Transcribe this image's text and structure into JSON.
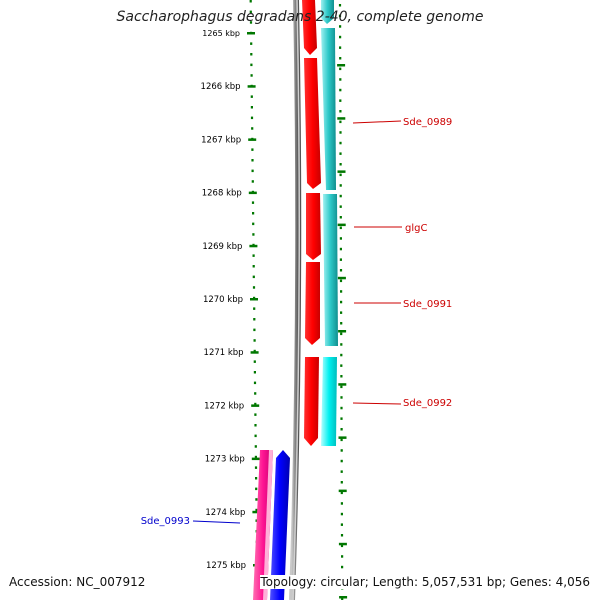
{
  "title": "Saccharophagus degradans 2-40, complete genome",
  "accession_text": "Accession: NC_007912",
  "summary_text": "Topology: circular; Length: 5,057,531 bp; Genes: 4,056",
  "ruler": {
    "unit": "kbp",
    "ticks": [
      "1265 kbp",
      "1266 kbp",
      "1267 kbp",
      "1268 kbp",
      "1269 kbp",
      "1270 kbp",
      "1271 kbp",
      "1272 kbp",
      "1273 kbp",
      "1274 kbp",
      "1275 kbp"
    ]
  },
  "genes": [
    {
      "label": "Sde_0989",
      "color": "#cc0000"
    },
    {
      "label": "glgC",
      "color": "#cc0000"
    },
    {
      "label": "Sde_0991",
      "color": "#cc0000"
    },
    {
      "label": "Sde_0992",
      "color": "#cc0000"
    },
    {
      "label": "Sde_0993",
      "color": "#0000cc"
    }
  ],
  "colors": {
    "forward_cds": "#ff0000",
    "forward_feature": "#00cccc",
    "reverse_cds": "#ff1493",
    "reverse_feature": "#0000ff",
    "backbone": "#888888",
    "tick": "#007700"
  }
}
